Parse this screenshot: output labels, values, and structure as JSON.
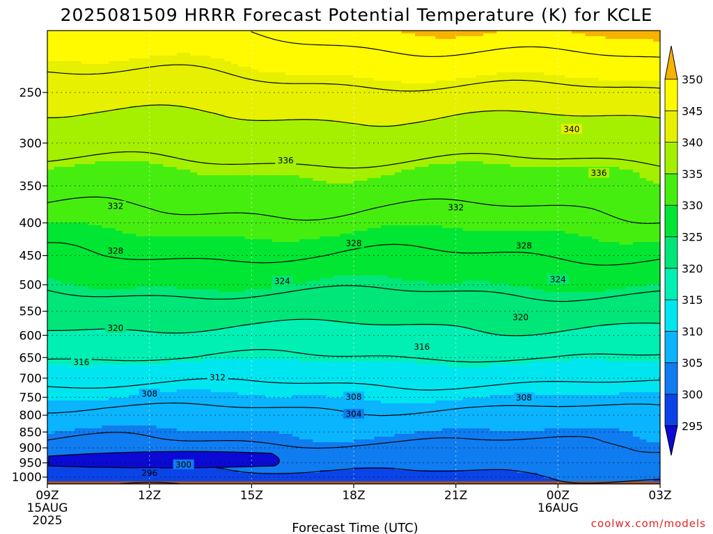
{
  "chart_data": {
    "type": "heatmap",
    "title": "2025081509 HRRR Forecast Potential Temperature (K) for KCLE",
    "xlabel": "Forecast Time (UTC)",
    "x_ticks": [
      {
        "hour": 0,
        "label": "09Z",
        "sub1": "15AUG",
        "sub2": "2025"
      },
      {
        "hour": 3,
        "label": "12Z",
        "sub1": "",
        "sub2": ""
      },
      {
        "hour": 6,
        "label": "15Z",
        "sub1": "",
        "sub2": ""
      },
      {
        "hour": 9,
        "label": "18Z",
        "sub1": "",
        "sub2": ""
      },
      {
        "hour": 12,
        "label": "21Z",
        "sub1": "",
        "sub2": ""
      },
      {
        "hour": 15,
        "label": "00Z",
        "sub1": "16AUG",
        "sub2": ""
      },
      {
        "hour": 18,
        "label": "03Z",
        "sub1": "",
        "sub2": ""
      }
    ],
    "xlim": [
      0,
      18
    ],
    "y_ticks": [
      250,
      300,
      350,
      400,
      450,
      500,
      550,
      600,
      650,
      700,
      750,
      800,
      850,
      900,
      950,
      1000
    ],
    "ylim": [
      1025,
      200
    ],
    "yscale": "log",
    "grid": true,
    "colorbar": {
      "levels": [
        295,
        300,
        305,
        310,
        315,
        320,
        325,
        330,
        335,
        340,
        345,
        350
      ],
      "colors": [
        "#0a0ad4",
        "#0a44e8",
        "#0f7cf0",
        "#0ab4ff",
        "#00e6f0",
        "#00f0b4",
        "#00e678",
        "#00e632",
        "#46ee10",
        "#a4f000",
        "#e6f000",
        "#fffa00",
        "#f7b200"
      ],
      "under_color": "#0a0ad4",
      "over_color": "#f7b200"
    },
    "ground_color": "#a0522d",
    "contour_interval": 4,
    "contour_labels": [
      {
        "value": "340",
        "hour": 15.4,
        "p": 285
      },
      {
        "value": "336",
        "hour": 7.0,
        "p": 319
      },
      {
        "value": "336",
        "hour": 16.2,
        "p": 334
      },
      {
        "value": "332",
        "hour": 2.0,
        "p": 376
      },
      {
        "value": "332",
        "hour": 12.0,
        "p": 378
      },
      {
        "value": "328",
        "hour": 2.0,
        "p": 442
      },
      {
        "value": "328",
        "hour": 9.0,
        "p": 430
      },
      {
        "value": "328",
        "hour": 14.0,
        "p": 434
      },
      {
        "value": "324",
        "hour": 6.9,
        "p": 493
      },
      {
        "value": "324",
        "hour": 15.0,
        "p": 490
      },
      {
        "value": "320",
        "hour": 2.0,
        "p": 584
      },
      {
        "value": "320",
        "hour": 13.9,
        "p": 562
      },
      {
        "value": "316",
        "hour": 1.0,
        "p": 660
      },
      {
        "value": "316",
        "hour": 11.0,
        "p": 625
      },
      {
        "value": "312",
        "hour": 5.0,
        "p": 698
      },
      {
        "value": "308",
        "hour": 3.0,
        "p": 740
      },
      {
        "value": "308",
        "hour": 9.0,
        "p": 748
      },
      {
        "value": "308",
        "hour": 14.0,
        "p": 750
      },
      {
        "value": "304",
        "hour": 9.0,
        "p": 796
      },
      {
        "value": "300",
        "hour": 4.0,
        "p": 955
      },
      {
        "value": "296",
        "hour": 3.0,
        "p": 985
      }
    ]
  },
  "footer": {
    "credit": "coolwx.com/models"
  }
}
